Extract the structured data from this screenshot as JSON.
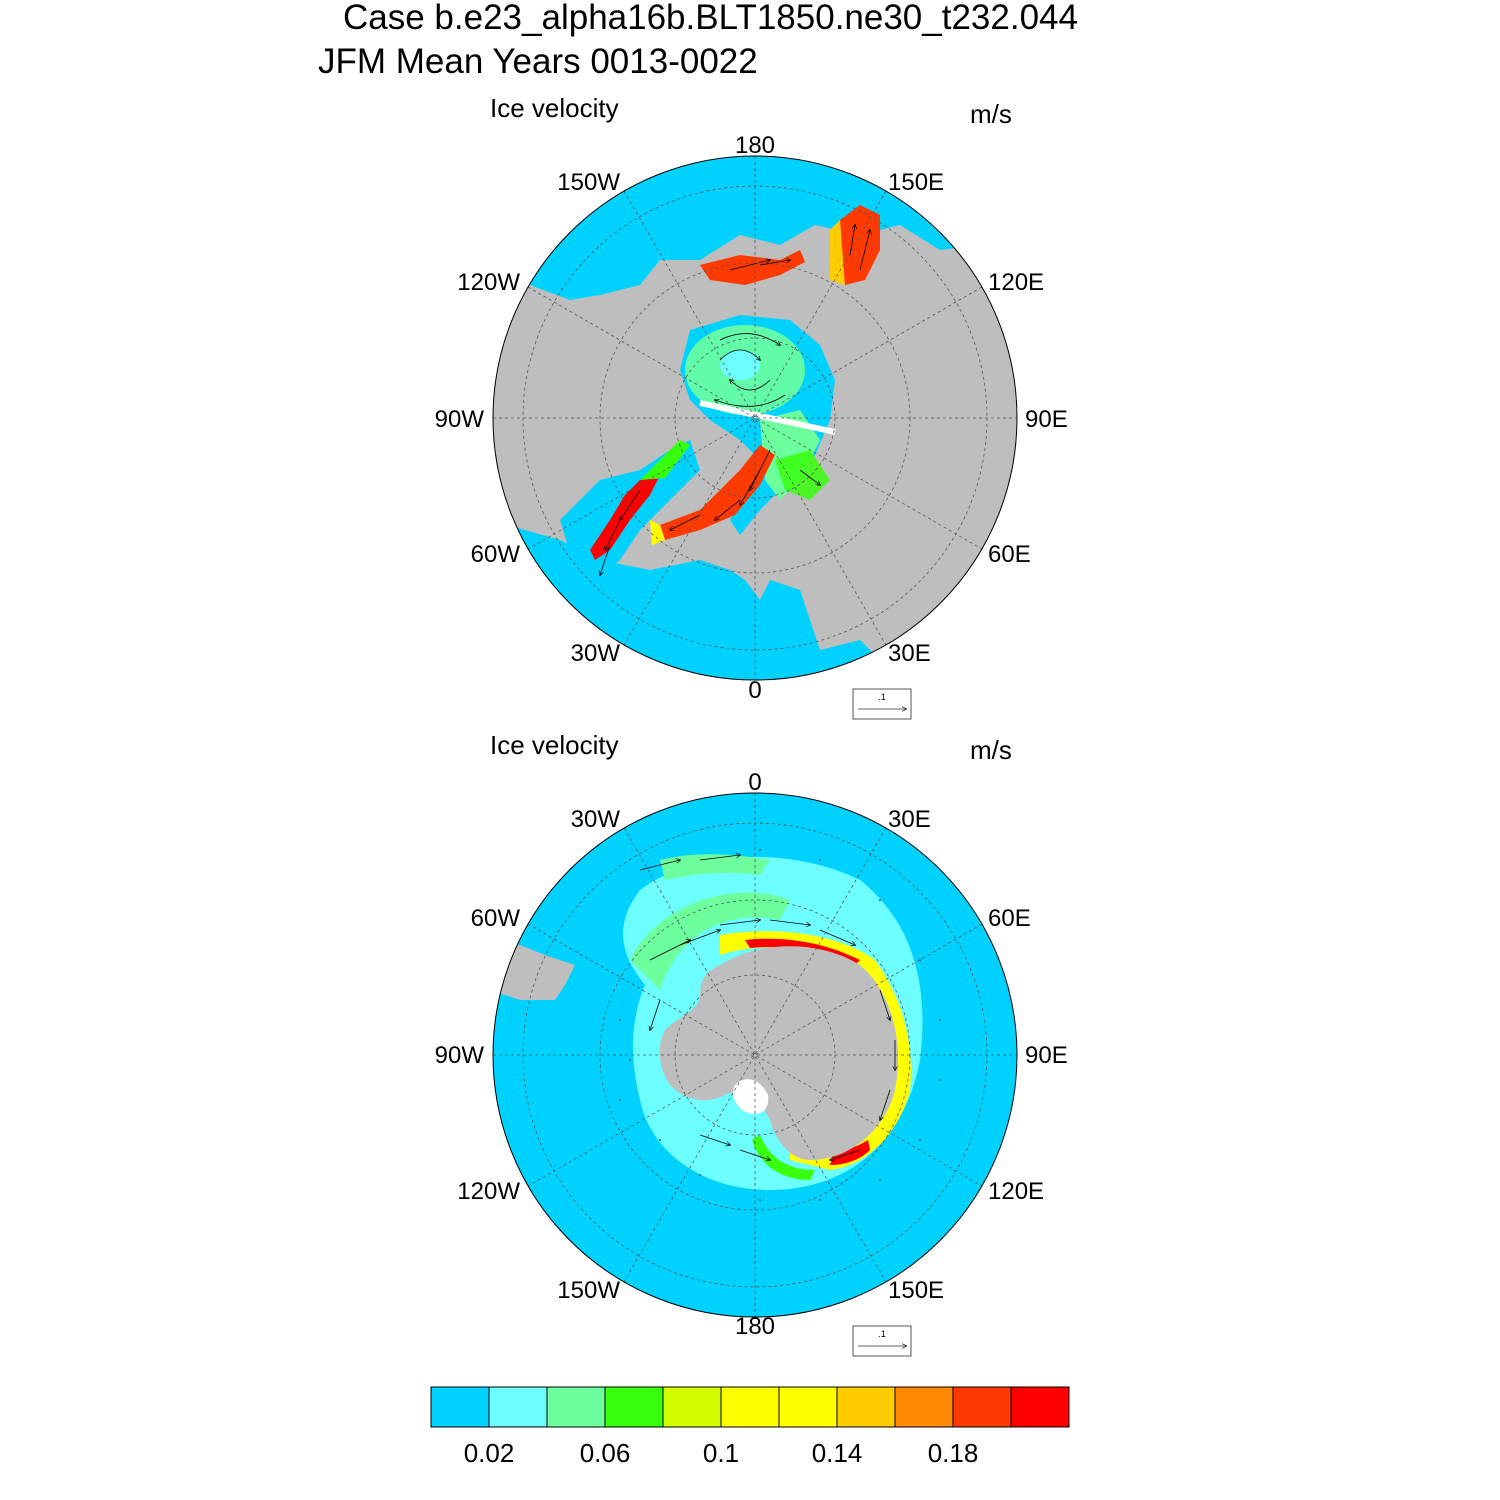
{
  "title": {
    "line1": "Case b.e23_alpha16b.BLT1850.ne30_t232.044",
    "line2": "JFM Mean   Years 0013-0022"
  },
  "panels": [
    {
      "name": "north",
      "left_label": "Ice velocity",
      "right_label": "m/s",
      "lon_labels": [
        "180",
        "150E",
        "120E",
        "90E",
        "60E",
        "30E",
        "0",
        "30W",
        "60W",
        "90W",
        "120W",
        "150W"
      ],
      "ref_vector_label": ".1"
    },
    {
      "name": "south",
      "left_label": "Ice velocity",
      "right_label": "m/s",
      "lon_labels": [
        "0",
        "30E",
        "60E",
        "90E",
        "120E",
        "150E",
        "180",
        "150W",
        "120W",
        "90W",
        "60W",
        "30W"
      ],
      "ref_vector_label": ".1"
    }
  ],
  "colorbar": {
    "colors": [
      "#00d2ff",
      "#6dffff",
      "#6dff9e",
      "#38ff0c",
      "#d2ff00",
      "#ffff00",
      "#ffff00",
      "#ffcc00",
      "#ff8800",
      "#ff3a00",
      "#ff0000"
    ],
    "labels": [
      "0.02",
      "0.06",
      "0.1",
      "0.14",
      "0.18"
    ]
  },
  "colors": {
    "ocean": "#00d2ff",
    "land": "#bebebe"
  }
}
